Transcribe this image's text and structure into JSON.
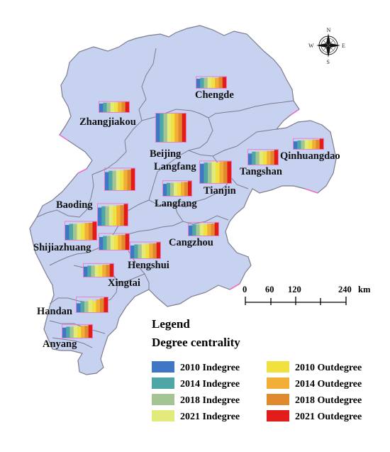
{
  "map": {
    "fill_color": "#c7d1f0",
    "border_color": "#7d7d8e",
    "highlight_border": "#ee70c4",
    "cities": [
      {
        "id": "zhangjiakou",
        "name": "Zhangjiakou"
      },
      {
        "id": "chengde",
        "name": "Chengde"
      },
      {
        "id": "beijing",
        "name": "Beijing"
      },
      {
        "id": "langfang-north",
        "name": "Langfang"
      },
      {
        "id": "qinhuangdao",
        "name": "Qinhuangdao"
      },
      {
        "id": "tangshan",
        "name": "Tangshan"
      },
      {
        "id": "tianjin",
        "name": "Tianjin"
      },
      {
        "id": "langfang",
        "name": "Langfang"
      },
      {
        "id": "baoding",
        "name": "Baoding"
      },
      {
        "id": "cangzhou",
        "name": "Cangzhou"
      },
      {
        "id": "shijiazhuang",
        "name": "Shijiazhuang"
      },
      {
        "id": "hengshui",
        "name": "Hengshui"
      },
      {
        "id": "xingtai",
        "name": "Xingtai"
      },
      {
        "id": "handan",
        "name": "Handan"
      },
      {
        "id": "anyang",
        "name": "Anyang"
      }
    ]
  },
  "compass": {
    "north": "N",
    "south": "S",
    "east": "E",
    "west": "W"
  },
  "scale_bar": {
    "ticks": [
      "0",
      "60",
      "120",
      "240"
    ],
    "unit": "km"
  },
  "legend": {
    "title": "Legend",
    "subtitle": "Degree centrality",
    "items": [
      {
        "label": "2010 Indegree",
        "color": "#3f76c6"
      },
      {
        "label": "2014 Indegree",
        "color": "#4ea7a6"
      },
      {
        "label": "2018 Indegree",
        "color": "#a5c494"
      },
      {
        "label": "2021 Indegree",
        "color": "#e1ea7a"
      },
      {
        "label": "2010 Outdegree",
        "color": "#f1e13e"
      },
      {
        "label": "2014 Outdegree",
        "color": "#f3ae38"
      },
      {
        "label": "2018 Outdegree",
        "color": "#df8a2e"
      },
      {
        "label": "2021 Outdegree",
        "color": "#e21b1b"
      }
    ]
  },
  "chart_data": {
    "type": "bar",
    "series_names": [
      "2010 Indegree",
      "2014 Indegree",
      "2018 Indegree",
      "2021 Indegree",
      "2010 Outdegree",
      "2014 Outdegree",
      "2018 Outdegree",
      "2021 Outdegree"
    ],
    "cities": [
      {
        "id": "chengde",
        "values": [
          0.5,
          0.55,
          0.55,
          0.6,
          0.55,
          0.55,
          0.6,
          0.6
        ]
      },
      {
        "id": "zhangjiakou",
        "values": [
          0.5,
          0.55,
          0.55,
          0.6,
          0.55,
          0.6,
          0.6,
          0.6
        ]
      },
      {
        "id": "beijing",
        "values": [
          1.0,
          1.0,
          1.0,
          1.0,
          1.0,
          1.0,
          1.0,
          1.0
        ]
      },
      {
        "id": "langfang-north",
        "values": [
          0.8,
          0.85,
          0.85,
          0.9,
          0.85,
          0.9,
          0.9,
          0.9
        ]
      },
      {
        "id": "qinhuangdao",
        "values": [
          0.45,
          0.5,
          0.5,
          0.55,
          0.5,
          0.55,
          0.55,
          0.6
        ]
      },
      {
        "id": "tangshan",
        "values": [
          0.6,
          0.7,
          0.7,
          0.75,
          0.7,
          0.75,
          0.75,
          0.8
        ]
      },
      {
        "id": "tianjin",
        "values": [
          0.85,
          0.9,
          0.9,
          0.95,
          0.9,
          0.95,
          0.95,
          1.0
        ]
      },
      {
        "id": "langfang",
        "values": [
          0.65,
          0.7,
          0.7,
          0.75,
          0.7,
          0.75,
          0.75,
          0.8
        ]
      },
      {
        "id": "baoding",
        "values": [
          0.75,
          0.8,
          0.8,
          0.85,
          0.8,
          0.85,
          0.85,
          0.9
        ]
      },
      {
        "id": "baoding-south",
        "values": [
          0.75,
          0.8,
          0.8,
          0.85,
          0.8,
          0.85,
          0.85,
          0.9
        ]
      },
      {
        "id": "cangzhou",
        "values": [
          0.55,
          0.6,
          0.6,
          0.65,
          0.6,
          0.65,
          0.65,
          0.7
        ]
      },
      {
        "id": "shijiazhuang",
        "values": [
          0.7,
          0.75,
          0.75,
          0.8,
          0.75,
          0.8,
          0.8,
          0.85
        ]
      },
      {
        "id": "hengshui-west",
        "values": [
          0.6,
          0.65,
          0.65,
          0.7,
          0.65,
          0.7,
          0.7,
          0.75
        ]
      },
      {
        "id": "hengshui",
        "values": [
          0.6,
          0.65,
          0.65,
          0.7,
          0.65,
          0.7,
          0.7,
          0.75
        ]
      },
      {
        "id": "xingtai",
        "values": [
          0.55,
          0.6,
          0.6,
          0.65,
          0.6,
          0.65,
          0.65,
          0.7
        ]
      },
      {
        "id": "handan",
        "values": [
          0.45,
          0.55,
          0.55,
          0.65,
          0.55,
          0.65,
          0.7,
          0.75
        ]
      },
      {
        "id": "anyang",
        "values": [
          0.55,
          0.6,
          0.6,
          0.65,
          0.6,
          0.65,
          0.65,
          0.7
        ]
      }
    ]
  }
}
